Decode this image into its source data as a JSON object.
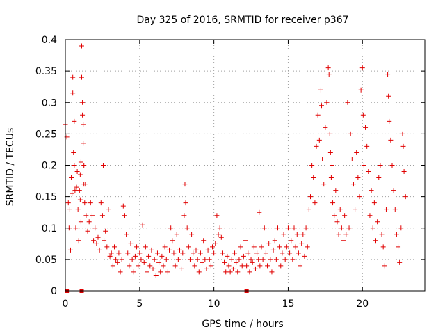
{
  "chart_data": {
    "type": "scatter",
    "title": "Day 325 of 2016, SRMTID for receiver p367",
    "xlabel": "GPS time / hours",
    "ylabel": "SRMTID / TECUs",
    "xlim": [
      0,
      24.2
    ],
    "ylim": [
      0,
      0.4
    ],
    "x_ticks": [
      0,
      5,
      10,
      15,
      20
    ],
    "x_tick_labels": [
      "0",
      "5",
      "10",
      "15",
      "20"
    ],
    "y_ticks": [
      0,
      0.05,
      0.1,
      0.15,
      0.2,
      0.25,
      0.3,
      0.35,
      0.4
    ],
    "y_tick_labels": [
      "0",
      "0.05",
      "0.1",
      "0.15",
      "0.2",
      "0.25",
      "0.3",
      "0.35",
      "0.4"
    ],
    "grid": true,
    "marker": "plus",
    "color": "#e00000",
    "series": [
      {
        "name": "SRMTID",
        "points": [
          [
            0.0,
            0.265
          ],
          [
            0.1,
            0.245
          ],
          [
            0.2,
            0.14
          ],
          [
            0.25,
            0.1
          ],
          [
            0.3,
            0.13
          ],
          [
            0.35,
            0.065
          ],
          [
            0.4,
            0.18
          ],
          [
            0.45,
            0.155
          ],
          [
            0.5,
            0.34
          ],
          [
            0.5,
            0.315
          ],
          [
            0.55,
            0.22
          ],
          [
            0.6,
            0.27
          ],
          [
            0.6,
            0.2
          ],
          [
            0.65,
            0.16
          ],
          [
            0.7,
            0.1
          ],
          [
            0.75,
            0.165
          ],
          [
            0.8,
            0.19
          ],
          [
            0.85,
            0.13
          ],
          [
            0.9,
            0.08
          ],
          [
            0.95,
            0.16
          ],
          [
            1.0,
            0.185
          ],
          [
            1.0,
            0.145
          ],
          [
            1.05,
            0.205
          ],
          [
            1.05,
            0.11
          ],
          [
            1.1,
            0.39
          ],
          [
            1.1,
            0.34
          ],
          [
            1.15,
            0.3
          ],
          [
            1.15,
            0.28
          ],
          [
            1.2,
            0.265
          ],
          [
            1.2,
            0.235
          ],
          [
            1.25,
            0.2
          ],
          [
            1.25,
            0.17
          ],
          [
            1.3,
            0.14
          ],
          [
            1.35,
            0.17
          ],
          [
            1.4,
            0.12
          ],
          [
            1.5,
            0.095
          ],
          [
            1.6,
            0.11
          ],
          [
            1.7,
            0.14
          ],
          [
            1.8,
            0.12
          ],
          [
            1.9,
            0.08
          ],
          [
            2.0,
            0.1
          ],
          [
            2.1,
            0.075
          ],
          [
            2.2,
            0.085
          ],
          [
            2.3,
            0.065
          ],
          [
            2.4,
            0.14
          ],
          [
            2.5,
            0.12
          ],
          [
            2.55,
            0.2
          ],
          [
            2.6,
            0.08
          ],
          [
            2.7,
            0.095
          ],
          [
            2.8,
            0.07
          ],
          [
            2.9,
            0.13
          ],
          [
            3.0,
            0.055
          ],
          [
            3.1,
            0.06
          ],
          [
            3.2,
            0.04
          ],
          [
            3.3,
            0.07
          ],
          [
            3.4,
            0.05
          ],
          [
            3.5,
            0.045
          ],
          [
            3.6,
            0.06
          ],
          [
            3.7,
            0.03
          ],
          [
            3.8,
            0.05
          ],
          [
            3.9,
            0.135
          ],
          [
            4.0,
            0.12
          ],
          [
            4.1,
            0.09
          ],
          [
            4.2,
            0.06
          ],
          [
            4.3,
            0.04
          ],
          [
            4.4,
            0.075
          ],
          [
            4.5,
            0.05
          ],
          [
            4.6,
            0.03
          ],
          [
            4.7,
            0.055
          ],
          [
            4.8,
            0.07
          ],
          [
            4.9,
            0.04
          ],
          [
            5.0,
            0.06
          ],
          [
            5.1,
            0.05
          ],
          [
            5.2,
            0.105
          ],
          [
            5.3,
            0.045
          ],
          [
            5.4,
            0.07
          ],
          [
            5.5,
            0.03
          ],
          [
            5.6,
            0.055
          ],
          [
            5.7,
            0.04
          ],
          [
            5.8,
            0.065
          ],
          [
            5.9,
            0.035
          ],
          [
            6.0,
            0.05
          ],
          [
            6.1,
            0.025
          ],
          [
            6.2,
            0.06
          ],
          [
            6.3,
            0.045
          ],
          [
            6.4,
            0.03
          ],
          [
            6.5,
            0.055
          ],
          [
            6.6,
            0.04
          ],
          [
            6.7,
            0.07
          ],
          [
            6.8,
            0.05
          ],
          [
            6.9,
            0.03
          ],
          [
            7.0,
            0.065
          ],
          [
            7.1,
            0.1
          ],
          [
            7.2,
            0.08
          ],
          [
            7.3,
            0.06
          ],
          [
            7.4,
            0.04
          ],
          [
            7.5,
            0.09
          ],
          [
            7.6,
            0.05
          ],
          [
            7.7,
            0.065
          ],
          [
            7.8,
            0.035
          ],
          [
            7.9,
            0.06
          ],
          [
            8.0,
            0.12
          ],
          [
            8.05,
            0.17
          ],
          [
            8.1,
            0.14
          ],
          [
            8.2,
            0.1
          ],
          [
            8.3,
            0.07
          ],
          [
            8.4,
            0.05
          ],
          [
            8.5,
            0.09
          ],
          [
            8.6,
            0.06
          ],
          [
            8.7,
            0.04
          ],
          [
            8.8,
            0.065
          ],
          [
            8.9,
            0.05
          ],
          [
            9.0,
            0.03
          ],
          [
            9.1,
            0.06
          ],
          [
            9.2,
            0.045
          ],
          [
            9.3,
            0.08
          ],
          [
            9.4,
            0.05
          ],
          [
            9.5,
            0.035
          ],
          [
            9.6,
            0.065
          ],
          [
            9.7,
            0.05
          ],
          [
            9.8,
            0.04
          ],
          [
            9.9,
            0.07
          ],
          [
            10.0,
            0.06
          ],
          [
            10.1,
            0.075
          ],
          [
            10.2,
            0.12
          ],
          [
            10.3,
            0.09
          ],
          [
            10.4,
            0.1
          ],
          [
            10.5,
            0.085
          ],
          [
            10.6,
            0.06
          ],
          [
            10.7,
            0.045
          ],
          [
            10.8,
            0.03
          ],
          [
            10.9,
            0.055
          ],
          [
            11.0,
            0.04
          ],
          [
            11.1,
            0.03
          ],
          [
            11.2,
            0.05
          ],
          [
            11.3,
            0.035
          ],
          [
            11.4,
            0.06
          ],
          [
            11.5,
            0.045
          ],
          [
            11.6,
            0.03
          ],
          [
            11.7,
            0.05
          ],
          [
            11.8,
            0.07
          ],
          [
            11.9,
            0.04
          ],
          [
            12.0,
            0.055
          ],
          [
            12.1,
            0.08
          ],
          [
            12.2,
            0.04
          ],
          [
            12.3,
            0.06
          ],
          [
            12.4,
            0.03
          ],
          [
            12.5,
            0.05
          ],
          [
            12.6,
            0.045
          ],
          [
            12.7,
            0.07
          ],
          [
            12.8,
            0.035
          ],
          [
            12.9,
            0.06
          ],
          [
            13.0,
            0.05
          ],
          [
            13.05,
            0.125
          ],
          [
            13.1,
            0.04
          ],
          [
            13.2,
            0.07
          ],
          [
            13.3,
            0.05
          ],
          [
            13.4,
            0.1
          ],
          [
            13.5,
            0.06
          ],
          [
            13.6,
            0.04
          ],
          [
            13.7,
            0.075
          ],
          [
            13.8,
            0.05
          ],
          [
            13.9,
            0.03
          ],
          [
            14.0,
            0.065
          ],
          [
            14.1,
            0.08
          ],
          [
            14.2,
            0.05
          ],
          [
            14.3,
            0.1
          ],
          [
            14.4,
            0.07
          ],
          [
            14.5,
            0.04
          ],
          [
            14.6,
            0.06
          ],
          [
            14.7,
            0.09
          ],
          [
            14.8,
            0.05
          ],
          [
            14.9,
            0.07
          ],
          [
            15.0,
            0.1
          ],
          [
            15.1,
            0.06
          ],
          [
            15.2,
            0.08
          ],
          [
            15.3,
            0.05
          ],
          [
            15.4,
            0.1
          ],
          [
            15.5,
            0.07
          ],
          [
            15.6,
            0.09
          ],
          [
            15.7,
            0.06
          ],
          [
            15.8,
            0.04
          ],
          [
            15.9,
            0.075
          ],
          [
            16.0,
            0.09
          ],
          [
            16.1,
            0.055
          ],
          [
            16.2,
            0.1
          ],
          [
            16.3,
            0.07
          ],
          [
            16.4,
            0.13
          ],
          [
            16.5,
            0.15
          ],
          [
            16.6,
            0.2
          ],
          [
            16.7,
            0.18
          ],
          [
            16.8,
            0.14
          ],
          [
            16.9,
            0.23
          ],
          [
            17.0,
            0.28
          ],
          [
            17.1,
            0.24
          ],
          [
            17.2,
            0.32
          ],
          [
            17.25,
            0.295
          ],
          [
            17.3,
            0.21
          ],
          [
            17.4,
            0.17
          ],
          [
            17.5,
            0.26
          ],
          [
            17.6,
            0.3
          ],
          [
            17.7,
            0.355
          ],
          [
            17.75,
            0.345
          ],
          [
            17.8,
            0.25
          ],
          [
            17.85,
            0.22
          ],
          [
            17.9,
            0.18
          ],
          [
            17.95,
            0.2
          ],
          [
            18.0,
            0.14
          ],
          [
            18.1,
            0.12
          ],
          [
            18.2,
            0.16
          ],
          [
            18.3,
            0.11
          ],
          [
            18.4,
            0.09
          ],
          [
            18.5,
            0.13
          ],
          [
            18.6,
            0.1
          ],
          [
            18.7,
            0.08
          ],
          [
            18.8,
            0.12
          ],
          [
            18.9,
            0.09
          ],
          [
            19.0,
            0.3
          ],
          [
            19.1,
            0.1
          ],
          [
            19.2,
            0.25
          ],
          [
            19.3,
            0.21
          ],
          [
            19.4,
            0.17
          ],
          [
            19.5,
            0.13
          ],
          [
            19.6,
            0.22
          ],
          [
            19.7,
            0.18
          ],
          [
            19.8,
            0.15
          ],
          [
            19.9,
            0.32
          ],
          [
            20.0,
            0.355
          ],
          [
            20.05,
            0.28
          ],
          [
            20.1,
            0.2
          ],
          [
            20.2,
            0.26
          ],
          [
            20.3,
            0.23
          ],
          [
            20.4,
            0.19
          ],
          [
            20.5,
            0.12
          ],
          [
            20.6,
            0.16
          ],
          [
            20.7,
            0.1
          ],
          [
            20.8,
            0.14
          ],
          [
            20.9,
            0.08
          ],
          [
            21.0,
            0.11
          ],
          [
            21.1,
            0.18
          ],
          [
            21.2,
            0.2
          ],
          [
            21.3,
            0.09
          ],
          [
            21.4,
            0.07
          ],
          [
            21.5,
            0.04
          ],
          [
            21.6,
            0.13
          ],
          [
            21.7,
            0.345
          ],
          [
            21.75,
            0.31
          ],
          [
            21.8,
            0.27
          ],
          [
            21.9,
            0.24
          ],
          [
            22.0,
            0.2
          ],
          [
            22.1,
            0.16
          ],
          [
            22.2,
            0.13
          ],
          [
            22.3,
            0.09
          ],
          [
            22.4,
            0.07
          ],
          [
            22.5,
            0.045
          ],
          [
            22.6,
            0.1
          ],
          [
            22.7,
            0.25
          ],
          [
            22.75,
            0.23
          ],
          [
            22.8,
            0.19
          ],
          [
            22.9,
            0.15
          ]
        ]
      }
    ],
    "baseline_zero_markers_x": [
      0.1,
      1.1,
      12.2
    ]
  }
}
